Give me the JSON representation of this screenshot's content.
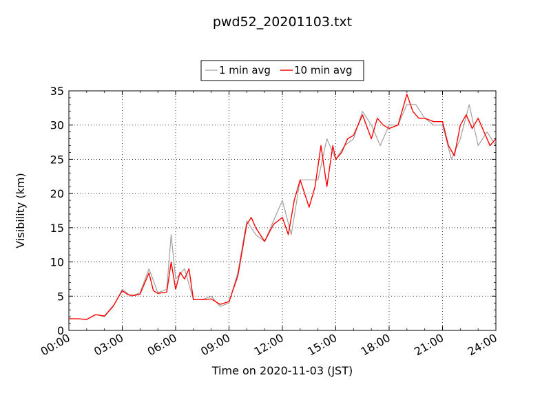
{
  "chart_data": {
    "type": "line",
    "title": "pwd52_20201103.txt",
    "xlabel": "Time on 2020-11-03 (JST)",
    "ylabel": "Visibility (km)",
    "xlim": [
      "00:00",
      "24:00"
    ],
    "ylim": [
      0,
      35
    ],
    "x_ticks": [
      "00:00",
      "03:00",
      "06:00",
      "09:00",
      "12:00",
      "15:00",
      "18:00",
      "21:00",
      "24:00"
    ],
    "y_ticks": [
      0,
      5,
      10,
      15,
      20,
      25,
      30,
      35
    ],
    "grid": true,
    "legend_position": "top-center",
    "series": [
      {
        "name": "1 min avg",
        "color": "#a0a0a0",
        "x": [
          "00:00",
          "00:30",
          "01:00",
          "01:30",
          "02:00",
          "02:30",
          "03:00",
          "03:30",
          "04:00",
          "04:30",
          "05:00",
          "05:30",
          "05:45",
          "06:00",
          "06:30",
          "07:00",
          "07:30",
          "08:00",
          "08:30",
          "09:00",
          "09:30",
          "10:00",
          "10:30",
          "11:00",
          "11:30",
          "12:00",
          "12:30",
          "13:00",
          "13:30",
          "14:00",
          "14:30",
          "15:00",
          "15:30",
          "16:00",
          "16:30",
          "17:00",
          "17:30",
          "18:00",
          "18:30",
          "19:00",
          "19:30",
          "20:00",
          "20:30",
          "21:00",
          "21:30",
          "22:00",
          "22:30",
          "23:00",
          "23:30",
          "24:00"
        ],
        "values": [
          1.7,
          1.7,
          1.6,
          2.3,
          2.0,
          3.5,
          6.0,
          5.0,
          5.5,
          9.0,
          5.5,
          6.0,
          14.0,
          7.5,
          9.0,
          4.5,
          4.5,
          5.0,
          3.5,
          4.0,
          8.5,
          16.0,
          14.0,
          13.0,
          16.0,
          19.0,
          14.0,
          22.0,
          22.0,
          22.0,
          28.0,
          25.0,
          27.0,
          28.0,
          32.0,
          30.0,
          27.0,
          30.0,
          30.0,
          33.0,
          33.0,
          31.0,
          30.0,
          30.0,
          25.0,
          28.0,
          33.0,
          27.0,
          29.0,
          27.0
        ]
      },
      {
        "name": "10 min avg",
        "color": "#ff0000",
        "x": [
          "00:00",
          "00:30",
          "01:00",
          "01:30",
          "02:00",
          "02:30",
          "03:00",
          "03:20",
          "03:40",
          "04:00",
          "04:30",
          "04:45",
          "05:00",
          "05:30",
          "05:45",
          "06:00",
          "06:15",
          "06:30",
          "06:45",
          "07:00",
          "07:30",
          "08:00",
          "08:30",
          "09:00",
          "09:30",
          "10:00",
          "10:15",
          "10:30",
          "11:00",
          "11:30",
          "12:00",
          "12:20",
          "12:40",
          "13:00",
          "13:30",
          "13:50",
          "14:10",
          "14:30",
          "14:50",
          "15:00",
          "15:20",
          "15:40",
          "16:00",
          "16:30",
          "17:00",
          "17:20",
          "17:40",
          "18:00",
          "18:30",
          "19:00",
          "19:20",
          "19:40",
          "20:00",
          "20:30",
          "21:00",
          "21:20",
          "21:40",
          "22:00",
          "22:20",
          "22:40",
          "23:00",
          "23:20",
          "23:40",
          "24:00"
        ],
        "values": [
          1.7,
          1.7,
          1.6,
          2.3,
          2.1,
          3.6,
          5.8,
          5.2,
          5.1,
          5.3,
          8.4,
          5.8,
          5.4,
          5.6,
          10.0,
          6.0,
          8.5,
          7.5,
          9.0,
          4.5,
          4.5,
          4.6,
          3.8,
          4.2,
          8.0,
          15.5,
          16.5,
          15.0,
          13.0,
          15.5,
          16.5,
          14.0,
          19.0,
          22.0,
          18.0,
          21.0,
          27.0,
          21.0,
          27.0,
          25.0,
          26.0,
          28.0,
          28.5,
          31.5,
          28.0,
          31.0,
          30.0,
          29.5,
          30.0,
          34.5,
          32.0,
          31.0,
          31.0,
          30.5,
          30.5,
          27.0,
          25.5,
          30.0,
          31.5,
          29.5,
          31.0,
          29.0,
          27.0,
          28.0
        ]
      }
    ]
  }
}
